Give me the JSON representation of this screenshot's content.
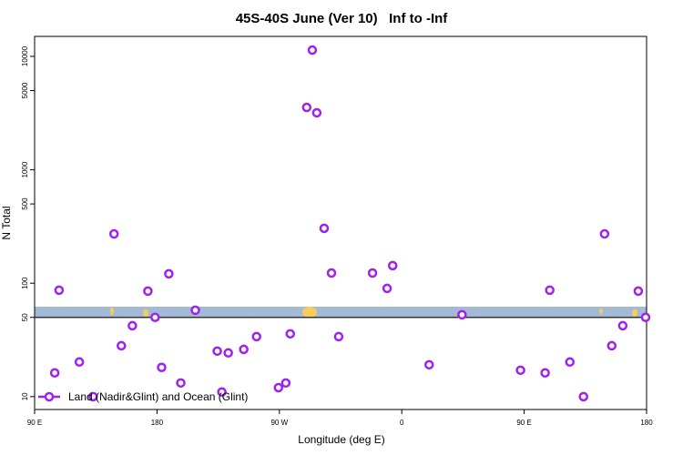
{
  "chart_data": {
    "type": "scatter",
    "title": "45S-40S June (Ver 10)   Inf to -Inf",
    "x_label": "Longitude (deg E)",
    "y_label": "N Total",
    "log_y": true,
    "xlim": [
      90,
      540
    ],
    "xticks": [
      {
        "value": 90,
        "label": "90 E"
      },
      {
        "value": 180,
        "label": "180"
      },
      {
        "value": 270,
        "label": "90 W"
      },
      {
        "value": 360,
        "label": "0"
      },
      {
        "value": 450,
        "label": "90 E"
      },
      {
        "value": 540,
        "label": "180"
      }
    ],
    "ylim": [
      7.7,
      15000
    ],
    "yticks": [
      10,
      50,
      100,
      500,
      1000,
      5000,
      10000
    ],
    "hline": 50,
    "legend_position": "bottom-left",
    "series": [
      {
        "name": "Land (Nadir&Glint) and Ocean (Glint)",
        "color": "#a020f0",
        "x": [
          104.8,
          108,
          122.9,
          133,
          148.4,
          153.8,
          161.9,
          173.3,
          178.6,
          183.4,
          188.7,
          197.5,
          208.2,
          224.3,
          227.7,
          232.4,
          243.8,
          253.2,
          269.3,
          274.7,
          278,
          290.1,
          294.2,
          297.5,
          302.9,
          308.3,
          313.6,
          338.5,
          349.2,
          353.3,
          380.1,
          404.3,
          447.3,
          465.4,
          468.8,
          483.6,
          493.6,
          509.1,
          514.4,
          522.5,
          533.9,
          539.3
        ],
        "values": [
          16.2,
          86.8,
          20.2,
          10,
          272,
          28.1,
          42.2,
          85.2,
          50,
          18.1,
          121,
          13.2,
          57.8,
          25.2,
          11,
          24.3,
          26.1,
          33.8,
          12,
          13.2,
          35.8,
          3550,
          11360,
          3180,
          305,
          123,
          33.8,
          123,
          90,
          143,
          19.1,
          52.7,
          17.1,
          16.2,
          86.8,
          20.2,
          10,
          272,
          28.1,
          42.2,
          85.2,
          50
        ]
      }
    ]
  }
}
